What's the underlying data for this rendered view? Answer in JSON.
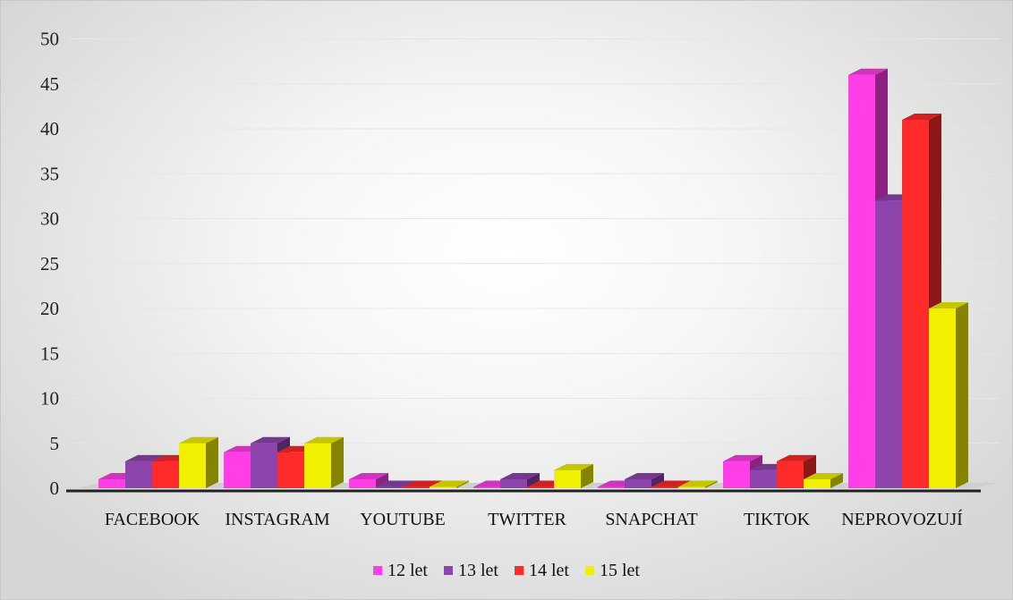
{
  "chart_data": {
    "type": "bar",
    "title": "",
    "xlabel": "",
    "ylabel": "",
    "ylim": [
      0,
      50
    ],
    "yticks": [
      "0",
      "5",
      "10",
      "15",
      "20",
      "25",
      "30",
      "35",
      "40",
      "45",
      "50"
    ],
    "categories": [
      "FACEBOOK",
      "INSTAGRAM",
      "YOUTUBE",
      "TWITTER",
      "SNAPCHAT",
      "TIKTOK",
      "NEPROVOZUJÍ"
    ],
    "series": [
      {
        "name": "12 let",
        "color": "#ff3ee8",
        "values": [
          1,
          4,
          1,
          0,
          0,
          3,
          46
        ]
      },
      {
        "name": "13 let",
        "color": "#8e44ad",
        "values": [
          3,
          5,
          0,
          1,
          1,
          2,
          32
        ]
      },
      {
        "name": "14 let",
        "color": "#ff2a2a",
        "values": [
          3,
          4,
          0,
          0,
          0,
          3,
          41
        ]
      },
      {
        "name": "15 let",
        "color": "#f0f000",
        "values": [
          5,
          5,
          0,
          2,
          0,
          1,
          20
        ]
      }
    ],
    "grid": true,
    "legend_position": "bottom",
    "style": "3d-clustered-columns"
  }
}
